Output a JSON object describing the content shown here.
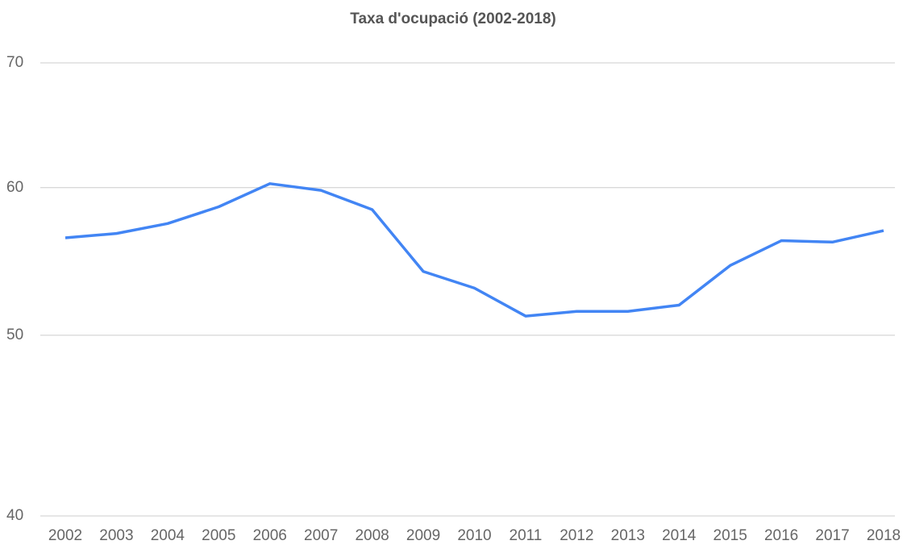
{
  "chart_data": {
    "type": "line",
    "title": "Taxa d'ocupació (2002-2018)",
    "categories": [
      "2002",
      "2003",
      "2004",
      "2005",
      "2006",
      "2007",
      "2008",
      "2009",
      "2010",
      "2011",
      "2012",
      "2013",
      "2014",
      "2015",
      "2016",
      "2017",
      "2018"
    ],
    "series": [
      {
        "name": "Taxa d'ocupació",
        "color": "#4285f4",
        "values": [
          56.4,
          56.7,
          57.4,
          58.6,
          60.3,
          59.8,
          58.4,
          54.1,
          53.0,
          51.2,
          51.5,
          51.5,
          51.9,
          54.5,
          56.2,
          56.1,
          56.9
        ]
      }
    ],
    "ylim": [
      40,
      70
    ],
    "yticks": [
      40,
      50,
      60,
      70
    ],
    "log_scale": true,
    "grid": true
  }
}
